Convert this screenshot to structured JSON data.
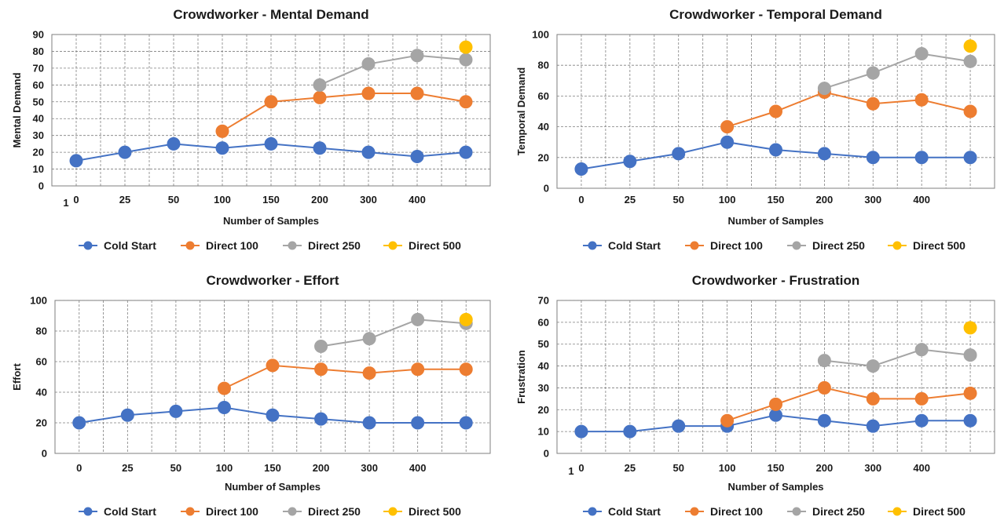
{
  "chart_data": [
    {
      "type": "line",
      "title": "Crowdworker - Mental Demand",
      "xlabel": "Number of Samples",
      "ylabel": "Mental Demand",
      "categories": [
        "0",
        "25",
        "50",
        "100",
        "150",
        "200",
        "300",
        "400",
        ""
      ],
      "x_stray_label": "1",
      "ylim": [
        0,
        90
      ],
      "yticks": [
        0,
        10,
        20,
        30,
        40,
        50,
        60,
        70,
        80,
        90
      ],
      "grid": true,
      "series": [
        {
          "name": "Cold Start",
          "color": "#4472c4",
          "values": [
            15,
            20,
            25,
            22.5,
            25,
            22.5,
            20,
            17.5,
            20
          ]
        },
        {
          "name": "Direct 100",
          "color": "#ed7d31",
          "values": [
            null,
            null,
            null,
            32.5,
            50,
            52.5,
            55,
            55,
            50
          ]
        },
        {
          "name": "Direct 250",
          "color": "#a5a5a5",
          "values": [
            null,
            null,
            null,
            null,
            null,
            60,
            72.5,
            77.5,
            75
          ]
        },
        {
          "name": "Direct 500",
          "color": "#ffc000",
          "values": [
            null,
            null,
            null,
            null,
            null,
            null,
            null,
            null,
            82.5
          ]
        }
      ]
    },
    {
      "type": "line",
      "title": "Crowdworker -  Temporal Demand",
      "xlabel": "Number of Samples",
      "ylabel": "Temporal Demand",
      "categories": [
        "0",
        "25",
        "50",
        "100",
        "150",
        "200",
        "300",
        "400",
        ""
      ],
      "x_stray_label": "",
      "ylim": [
        0,
        100
      ],
      "yticks": [
        0,
        20,
        40,
        60,
        80,
        100
      ],
      "grid": true,
      "series": [
        {
          "name": "Cold Start",
          "color": "#4472c4",
          "values": [
            12.5,
            17.5,
            22.5,
            30,
            25,
            22.5,
            20,
            20,
            20
          ]
        },
        {
          "name": "Direct 100",
          "color": "#ed7d31",
          "values": [
            null,
            null,
            null,
            40,
            50,
            62.5,
            55,
            57.5,
            50
          ]
        },
        {
          "name": "Direct 250",
          "color": "#a5a5a5",
          "values": [
            null,
            null,
            null,
            null,
            null,
            65,
            75,
            87.5,
            82.5
          ]
        },
        {
          "name": "Direct 500",
          "color": "#ffc000",
          "values": [
            null,
            null,
            null,
            null,
            null,
            null,
            null,
            null,
            92.5
          ]
        }
      ]
    },
    {
      "type": "line",
      "title": "Crowdworker - Effort",
      "xlabel": "Number of Samples",
      "ylabel": "Effort",
      "categories": [
        "0",
        "25",
        "50",
        "100",
        "150",
        "200",
        "300",
        "400",
        ""
      ],
      "x_stray_label": "",
      "ylim": [
        0,
        100
      ],
      "yticks": [
        0,
        20,
        40,
        60,
        80,
        100
      ],
      "grid": true,
      "series": [
        {
          "name": "Cold Start",
          "color": "#4472c4",
          "values": [
            20,
            25,
            27.5,
            30,
            25,
            22.5,
            20,
            20,
            20
          ]
        },
        {
          "name": "Direct 100",
          "color": "#ed7d31",
          "values": [
            null,
            null,
            null,
            42.5,
            57.5,
            55,
            52.5,
            55,
            55
          ]
        },
        {
          "name": "Direct 250",
          "color": "#a5a5a5",
          "values": [
            null,
            null,
            null,
            null,
            null,
            70,
            75,
            87.5,
            85
          ]
        },
        {
          "name": "Direct 500",
          "color": "#ffc000",
          "values": [
            null,
            null,
            null,
            null,
            null,
            null,
            null,
            null,
            87.5
          ]
        }
      ]
    },
    {
      "type": "line",
      "title": "Crowdworker - Frustration",
      "xlabel": "Number of Samples",
      "ylabel": "Frustration",
      "categories": [
        "0",
        "25",
        "50",
        "100",
        "150",
        "200",
        "300",
        "400",
        ""
      ],
      "x_stray_label": "1",
      "ylim": [
        0,
        70
      ],
      "yticks": [
        0,
        10,
        20,
        30,
        40,
        50,
        60,
        70
      ],
      "grid": true,
      "series": [
        {
          "name": "Cold Start",
          "color": "#4472c4",
          "values": [
            10,
            10,
            12.5,
            12.5,
            17.5,
            15,
            12.5,
            15,
            15
          ]
        },
        {
          "name": "Direct 100",
          "color": "#ed7d31",
          "values": [
            null,
            null,
            null,
            15,
            22.5,
            30,
            25,
            25,
            27.5
          ]
        },
        {
          "name": "Direct 250",
          "color": "#a5a5a5",
          "values": [
            null,
            null,
            null,
            null,
            null,
            42.5,
            40,
            47.5,
            45
          ]
        },
        {
          "name": "Direct 500",
          "color": "#ffc000",
          "values": [
            null,
            null,
            null,
            null,
            null,
            null,
            null,
            null,
            57.5
          ]
        }
      ]
    }
  ]
}
